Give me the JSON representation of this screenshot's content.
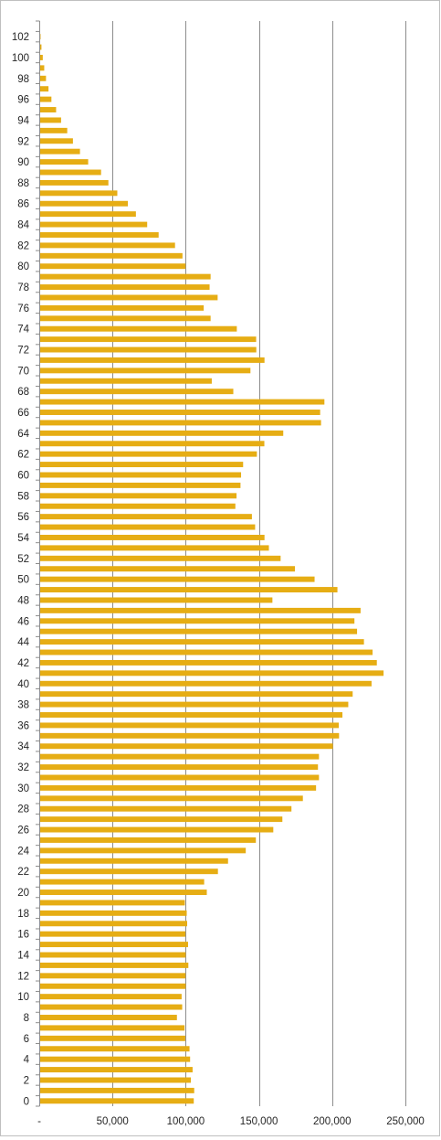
{
  "chart_data": {
    "type": "bar",
    "orientation": "horizontal",
    "xlim": [
      0,
      250000
    ],
    "x_ticks": [
      0,
      50000,
      100000,
      150000,
      200000,
      250000
    ],
    "x_tick_labels": [
      "-",
      "50,000",
      "100,000",
      "150,000",
      "200,000",
      "250,000"
    ],
    "y_tick_labels": [
      "0",
      "2",
      "4",
      "6",
      "8",
      "10",
      "12",
      "14",
      "16",
      "18",
      "20",
      "22",
      "24",
      "26",
      "28",
      "30",
      "32",
      "34",
      "36",
      "38",
      "40",
      "42",
      "44",
      "46",
      "48",
      "50",
      "52",
      "54",
      "56",
      "58",
      "60",
      "62",
      "64",
      "66",
      "68",
      "70",
      "72",
      "74",
      "76",
      "78",
      "80",
      "82",
      "84",
      "86",
      "88",
      "90",
      "92",
      "94",
      "96",
      "98",
      "100",
      "102"
    ],
    "grid": "vertical",
    "legend": "none",
    "bar_color": "#E6AD14",
    "gridline_color": "#8c8c8c",
    "categories": [
      0,
      1,
      2,
      3,
      4,
      5,
      6,
      7,
      8,
      9,
      10,
      11,
      12,
      13,
      14,
      15,
      16,
      17,
      18,
      19,
      20,
      21,
      22,
      23,
      24,
      25,
      26,
      27,
      28,
      29,
      30,
      31,
      32,
      33,
      34,
      35,
      36,
      37,
      38,
      39,
      40,
      41,
      42,
      43,
      44,
      45,
      46,
      47,
      48,
      49,
      50,
      51,
      52,
      53,
      54,
      55,
      56,
      57,
      58,
      59,
      60,
      61,
      62,
      63,
      64,
      65,
      66,
      67,
      68,
      69,
      70,
      71,
      72,
      73,
      74,
      75,
      76,
      77,
      78,
      79,
      80,
      81,
      82,
      83,
      84,
      85,
      86,
      87,
      88,
      89,
      90,
      91,
      92,
      93,
      94,
      95,
      96,
      97,
      98,
      99,
      100,
      101,
      102,
      103
    ],
    "values": [
      105500,
      105800,
      103500,
      104700,
      103000,
      102600,
      99700,
      99200,
      94000,
      97600,
      97200,
      100000,
      99900,
      101800,
      100000,
      101600,
      99800,
      101000,
      100700,
      99400,
      114400,
      112600,
      122000,
      128900,
      141000,
      147900,
      159800,
      166000,
      172200,
      180000,
      189000,
      191000,
      190300,
      191000,
      200500,
      204700,
      204500,
      207000,
      211000,
      214000,
      226900,
      235100,
      230500,
      227600,
      221700,
      217000,
      215200,
      219400,
      159200,
      203600,
      188000,
      174600,
      164800,
      156800,
      153800,
      147400,
      145200,
      133900,
      134700,
      137400,
      137800,
      139200,
      148600,
      153700,
      166600,
      192400,
      191800,
      194700,
      132500,
      117800,
      144200,
      153800,
      148200,
      148100,
      134900,
      117000,
      112300,
      121800,
      116300,
      117000,
      99900,
      97800,
      92700,
      81500,
      73700,
      66000,
      60500,
      53300,
      47200,
      42200,
      33400,
      27800,
      23000,
      19100,
      14900,
      11500,
      8300,
      6300,
      4600,
      3400,
      2400,
      1500,
      900,
      500
    ]
  }
}
